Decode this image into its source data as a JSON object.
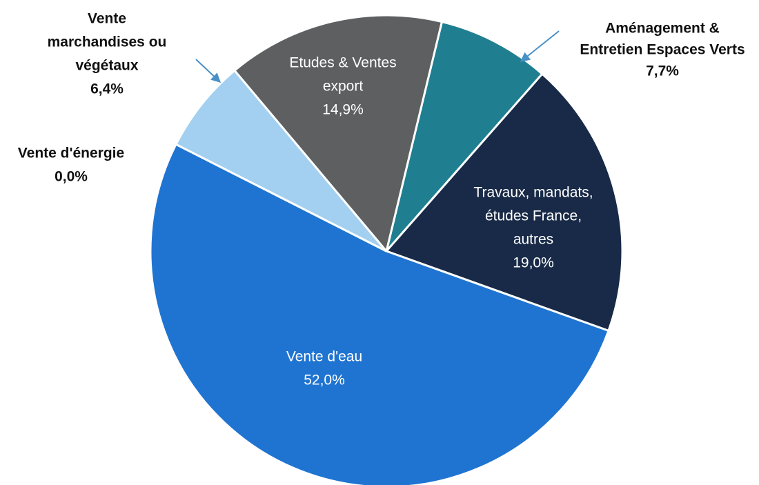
{
  "chart_data": {
    "type": "pie",
    "categories": [
      [
        "Aménagement &",
        "Entretien Espaces Verts"
      ],
      [
        "Travaux, mandats,",
        "études France,",
        "autres"
      ],
      [
        "Vente d'eau"
      ],
      [
        "Vente d'énergie"
      ],
      [
        "Vente",
        "marchandises ou",
        "végétaux"
      ],
      [
        "Etudes  & Ventes",
        "export"
      ]
    ],
    "values": [
      7.7,
      19.0,
      52.0,
      0.0,
      6.4,
      14.9
    ],
    "value_labels": [
      "7,7%",
      "19,0%",
      "52,0%",
      "0,0%",
      "6,4%",
      "14,9%"
    ],
    "colors": [
      "#1f7f91",
      "#182a47",
      "#1f74d1",
      "#5ea0e0",
      "#a3d0f0",
      "#5d5f61"
    ]
  }
}
